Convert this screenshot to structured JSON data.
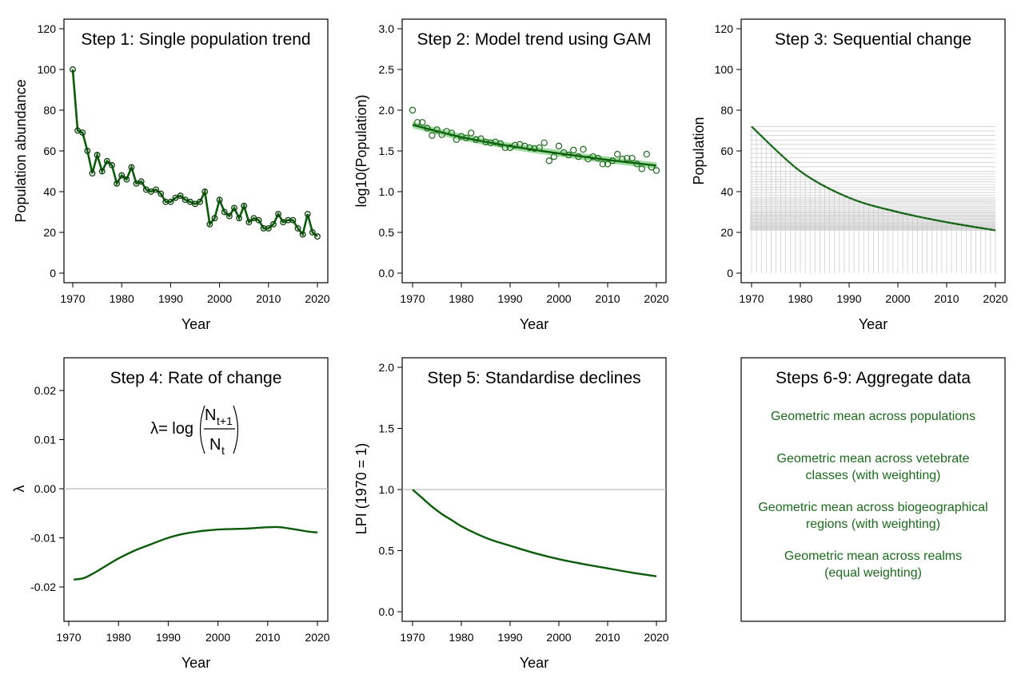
{
  "colors": {
    "line": "#0a5c0a",
    "points": "#1a6b1a",
    "ci_band": "#7fd07f",
    "reference": "#bbbbbb",
    "grid": "#c8c8c8",
    "text_green": "#1a6b1a"
  },
  "chart_data": [
    {
      "id": "step1",
      "type": "line",
      "title": "Step 1: Single population trend",
      "xlabel": "Year",
      "ylabel": "Population abundance",
      "xlim": [
        1970,
        2020
      ],
      "ylim": [
        0,
        120
      ],
      "xticks": [
        1970,
        1980,
        1990,
        2000,
        2010,
        2020
      ],
      "yticks": [
        0,
        20,
        40,
        60,
        80,
        100,
        120
      ],
      "markers": true,
      "series": [
        {
          "x": [
            1970,
            1971,
            1972,
            1973,
            1974,
            1975,
            1976,
            1977,
            1978,
            1979,
            1980,
            1981,
            1982,
            1983,
            1984,
            1985,
            1986,
            1987,
            1988,
            1989,
            1990,
            1991,
            1992,
            1993,
            1994,
            1995,
            1996,
            1997,
            1998,
            1999,
            2000,
            2001,
            2002,
            2003,
            2004,
            2005,
            2006,
            2007,
            2008,
            2009,
            2010,
            2011,
            2012,
            2013,
            2014,
            2015,
            2016,
            2017,
            2018,
            2019,
            2020
          ],
          "values": [
            100,
            70,
            69,
            60,
            49,
            58,
            50,
            55,
            53,
            44,
            48,
            46,
            52,
            44,
            45,
            41,
            40,
            41,
            39,
            35,
            35,
            37,
            38,
            36,
            35,
            34,
            35,
            40,
            24,
            27,
            36,
            30,
            28,
            32,
            27,
            33,
            25,
            27,
            26,
            22,
            22,
            24,
            29,
            25,
            26,
            26,
            22,
            19,
            29,
            20,
            18
          ]
        }
      ]
    },
    {
      "id": "step2",
      "type": "scatter",
      "title": "Step 2: Model trend using GAM",
      "xlabel": "Year",
      "ylabel": "log10(Population)",
      "xlim": [
        1970,
        2020
      ],
      "ylim": [
        0,
        3
      ],
      "xticks": [
        1970,
        1980,
        1990,
        2000,
        2010,
        2020
      ],
      "yticks": [
        "0.0",
        "0.5",
        "1.0",
        "1.5",
        "2.0",
        "2.5",
        "3.0"
      ],
      "series": [
        {
          "x": [
            1970,
            1971,
            1972,
            1973,
            1974,
            1975,
            1976,
            1977,
            1978,
            1979,
            1980,
            1981,
            1982,
            1983,
            1984,
            1985,
            1986,
            1987,
            1988,
            1989,
            1990,
            1991,
            1992,
            1993,
            1994,
            1995,
            1996,
            1997,
            1998,
            1999,
            2000,
            2001,
            2002,
            2003,
            2004,
            2005,
            2006,
            2007,
            2008,
            2009,
            2010,
            2011,
            2012,
            2013,
            2014,
            2015,
            2016,
            2017,
            2018,
            2019,
            2020
          ],
          "values": [
            2.0,
            1.85,
            1.85,
            1.78,
            1.69,
            1.76,
            1.7,
            1.74,
            1.72,
            1.64,
            1.68,
            1.66,
            1.72,
            1.64,
            1.65,
            1.61,
            1.6,
            1.61,
            1.59,
            1.54,
            1.54,
            1.57,
            1.58,
            1.56,
            1.54,
            1.53,
            1.54,
            1.6,
            1.38,
            1.43,
            1.56,
            1.48,
            1.45,
            1.51,
            1.43,
            1.52,
            1.4,
            1.43,
            1.41,
            1.34,
            1.34,
            1.38,
            1.46,
            1.4,
            1.41,
            1.41,
            1.34,
            1.28,
            1.46,
            1.3,
            1.26
          ]
        }
      ],
      "fit": {
        "x": [
          1970,
          1980,
          1990,
          2000,
          2010,
          2020
        ],
        "values": [
          1.82,
          1.67,
          1.56,
          1.47,
          1.39,
          1.32
        ],
        "ci_halfwidth": 0.04
      }
    },
    {
      "id": "step3",
      "type": "line",
      "title": "Step 3: Sequential change",
      "xlabel": "Year",
      "ylabel": "Population",
      "xlim": [
        1970,
        2020
      ],
      "ylim": [
        0,
        120
      ],
      "xticks": [
        1970,
        1980,
        1990,
        2000,
        2010,
        2020
      ],
      "yticks": [
        0,
        20,
        40,
        60,
        80,
        100,
        120
      ],
      "curve": {
        "x": [
          1970,
          1980,
          1990,
          2000,
          2010,
          2020
        ],
        "values": [
          72,
          50,
          37,
          30,
          25,
          21
        ]
      }
    },
    {
      "id": "step4",
      "type": "line",
      "title": "Step 4: Rate of change",
      "xlabel": "Year",
      "ylabel": "λ",
      "xlim": [
        1970,
        2020
      ],
      "ylim": [
        -0.027,
        0.027
      ],
      "xticks": [
        1970,
        1980,
        1990,
        2000,
        2010,
        2020
      ],
      "yticks": [
        -0.02,
        -0.01,
        0.0,
        0.01,
        0.02
      ],
      "ytick_labels": [
        "-0.02",
        "-0.01",
        "0.00",
        "0.01",
        "0.02"
      ],
      "reference_y": 0,
      "series": [
        {
          "x": [
            1971,
            1973,
            1975,
            1977,
            1980,
            1983,
            1986,
            1990,
            1993,
            1996,
            2000,
            2003,
            2006,
            2009,
            2012,
            2015,
            2018,
            2020
          ],
          "values": [
            -0.0185,
            -0.0182,
            -0.0172,
            -0.016,
            -0.0142,
            -0.0127,
            -0.0115,
            -0.01,
            -0.0092,
            -0.0087,
            -0.0083,
            -0.0082,
            -0.0081,
            -0.0079,
            -0.0078,
            -0.0082,
            -0.0087,
            -0.0089
          ]
        }
      ],
      "formula": {
        "lhs": "λ= log",
        "numerator": "N",
        "numerator_sub": "t+1",
        "denominator": "N",
        "denominator_sub": "t"
      }
    },
    {
      "id": "step5",
      "type": "line",
      "title": "Step 5: Standardise declines",
      "xlabel": "Year",
      "ylabel": "LPI (1970 = 1)",
      "xlim": [
        1970,
        2020
      ],
      "ylim": [
        0,
        2
      ],
      "xticks": [
        1970,
        1980,
        1990,
        2000,
        2010,
        2020
      ],
      "yticks": [
        "0.0",
        "0.5",
        "1.0",
        "1.5",
        "2.0"
      ],
      "reference_y": 1,
      "series": [
        {
          "x": [
            1970,
            1972,
            1974,
            1976,
            1978,
            1980,
            1983,
            1986,
            1990,
            1995,
            2000,
            2005,
            2010,
            2015,
            2020
          ],
          "values": [
            1.0,
            0.93,
            0.86,
            0.8,
            0.75,
            0.7,
            0.64,
            0.59,
            0.54,
            0.48,
            0.43,
            0.39,
            0.355,
            0.32,
            0.29
          ]
        }
      ]
    }
  ],
  "aggregate_panel": {
    "title": "Steps 6-9: Aggregate data",
    "items": [
      [
        "Geometric mean across populations"
      ],
      [
        "Geometric mean across vetebrate",
        "classes (with weighting)"
      ],
      [
        "Geometric mean across biogeographical",
        "regions (with weighting)"
      ],
      [
        "Geometric mean across realms",
        "(equal weighting)"
      ]
    ]
  }
}
